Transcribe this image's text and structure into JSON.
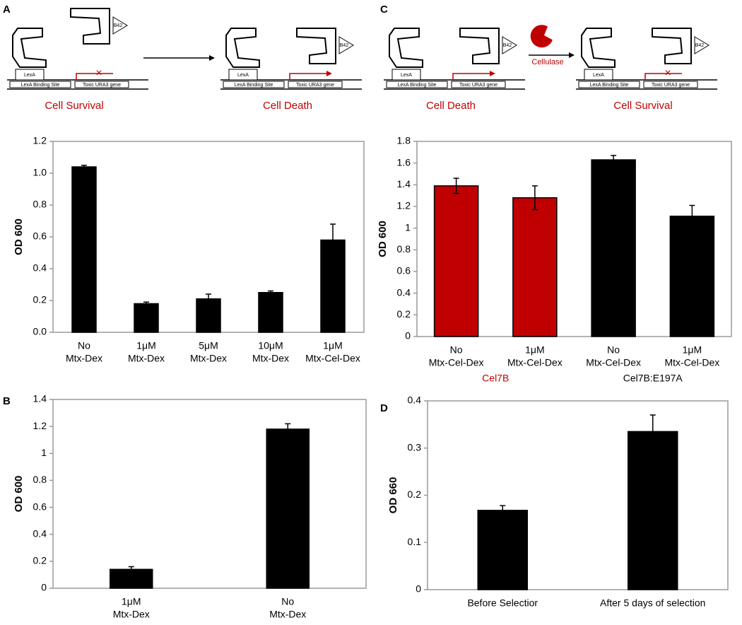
{
  "panels": [
    "A",
    "B",
    "C",
    "D"
  ],
  "diagrams": [
    {
      "lexa": "LexA",
      "binding_site": "LexA Binding Site",
      "gene": "Toxic URA3 gene",
      "b42": "B42",
      "caption": "Cell Survival"
    },
    {
      "lexa": "LexA",
      "binding_site": "LexA Binding Site",
      "gene": "Toxic URA3 gene",
      "b42": "B42",
      "caption": "Cell Death"
    },
    {
      "lexa": "LexA",
      "binding_site": "LexA Binding Site",
      "gene": "Toxic URA3 gene",
      "b42": "B42",
      "caption": "Cell Death"
    },
    {
      "lexa": "LexA",
      "binding_site": "LexA Binding Site",
      "gene": "Toxic URA3 gene",
      "b42": "B42",
      "caption": "Cell Survival"
    }
  ],
  "cellulase": "Cellulase",
  "chart_data": [
    {
      "type": "bar",
      "y_label": "OD 600",
      "categories": [
        [
          "No",
          "Mtx-Dex"
        ],
        [
          "1μM",
          "Mtx-Dex"
        ],
        [
          "5μM",
          "Mtx-Dex"
        ],
        [
          "10μM",
          "Mtx-Dex"
        ],
        [
          "1μM",
          "Mtx-Cel-Dex"
        ]
      ],
      "series": [
        {
          "colors": [
            "#000000",
            "#000000",
            "#000000",
            "#000000",
            "#000000"
          ],
          "values": [
            1.04,
            0.18,
            0.21,
            0.25,
            0.58
          ],
          "errors": [
            0.01,
            0.01,
            0.03,
            0.01,
            0.1
          ]
        }
      ],
      "ylim": [
        0,
        1.2
      ],
      "yticks": [
        {
          "value": 0,
          "label": "0.0"
        },
        0.2,
        0.4,
        0.6,
        0.8,
        {
          "value": 1,
          "label": "1.0"
        },
        1.2
      ]
    },
    {
      "type": "bar",
      "y_label": "OD 600",
      "categories": [
        [
          "No",
          "Mtx-Cel-Dex"
        ],
        [
          "1μM",
          "Mtx-Cel-Dex"
        ],
        [
          "No",
          "Mtx-Cel-Dex"
        ],
        [
          "1μM",
          "Mtx-Cel-Dex"
        ]
      ],
      "groups": [
        {
          "name": "Cel7B",
          "color": "#c00000"
        },
        {
          "name": "Cel7B:E197A",
          "color": "#000000"
        }
      ],
      "series": [
        {
          "colors": [
            "#c00000",
            "#c00000",
            "#000000",
            "#000000"
          ],
          "values": [
            1.39,
            1.28,
            1.63,
            1.11
          ],
          "errors": [
            0.07,
            0.11,
            0.04,
            0.1
          ]
        }
      ],
      "ylim": [
        0,
        1.8
      ],
      "yticks": [
        0,
        0.2,
        0.4,
        0.6,
        0.8,
        1,
        1.2,
        1.4,
        1.6,
        1.8
      ]
    },
    {
      "type": "bar",
      "y_label": "OD 600",
      "categories": [
        [
          "1μM",
          "Mtx-Dex"
        ],
        [
          "No",
          "Mtx-Dex"
        ]
      ],
      "series": [
        {
          "colors": [
            "#000000",
            "#000000"
          ],
          "values": [
            0.14,
            1.18
          ],
          "errors": [
            0.02,
            0.04
          ]
        }
      ],
      "ylim": [
        0,
        1.4
      ],
      "yticks": [
        0,
        0.2,
        0.4,
        0.6,
        0.8,
        1,
        1.2,
        1.4
      ]
    },
    {
      "type": "bar",
      "y_label": "OD 660",
      "categories": [
        [
          "Before Selectior"
        ],
        [
          "After 5 days of selection"
        ]
      ],
      "series": [
        {
          "colors": [
            "#000000",
            "#000000"
          ],
          "values": [
            0.168,
            0.335
          ],
          "errors": [
            0.01,
            0.035
          ]
        }
      ],
      "ylim": [
        0,
        0.4
      ],
      "yticks": [
        0,
        0.1,
        0.2,
        0.3,
        0.4
      ]
    }
  ]
}
